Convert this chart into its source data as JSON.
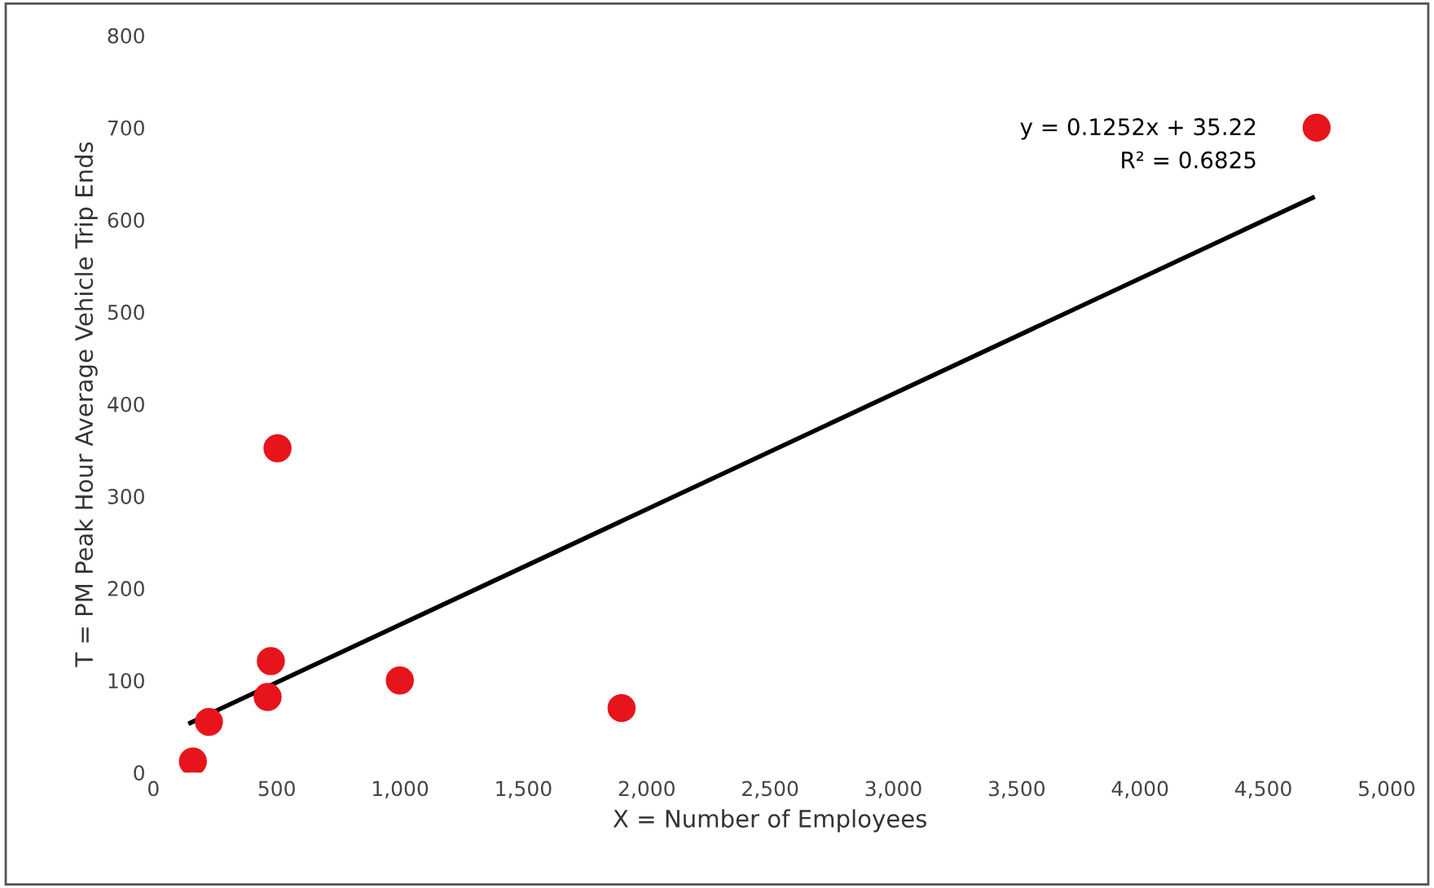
{
  "chart_data": {
    "type": "scatter",
    "xlabel": "X = Number of Employees",
    "ylabel": "T = PM Peak Hour Average Vehicle Trip Ends",
    "annotations": [
      "y = 0.1252x + 35.22",
      "R² = 0.6825"
    ],
    "series": [
      {
        "color": "#e8141b",
        "marker": "circle",
        "x": [
          160,
          225,
          463,
          476,
          503,
          999,
          1898,
          4716
        ],
        "values": [
          12,
          55,
          82,
          121,
          352,
          100,
          70,
          700
        ]
      },
      {
        "type": "line",
        "color": "#000000",
        "line_style": "solid",
        "x": [
          150,
          4700
        ],
        "values": [
          54,
          624
        ]
      }
    ],
    "xlim": [
      0,
      5000
    ],
    "xticks": [
      0,
      500,
      {
        "value": 1000,
        "label": "1,000"
      },
      {
        "value": 1500,
        "label": "1,500"
      },
      {
        "value": 2000,
        "label": "2,000"
      },
      {
        "value": 2500,
        "label": "2,500"
      },
      {
        "value": 3000,
        "label": "3,000"
      },
      {
        "value": 3500,
        "label": "3,500"
      },
      {
        "value": 4000,
        "label": "4,000"
      },
      {
        "value": 4500,
        "label": "4,500"
      },
      {
        "value": 5000,
        "label": "5,000"
      }
    ],
    "ylim": [
      0,
      800
    ],
    "yticks": [
      0,
      100,
      200,
      300,
      400,
      500,
      600,
      700,
      800
    ],
    "grid": false,
    "legend": false
  }
}
